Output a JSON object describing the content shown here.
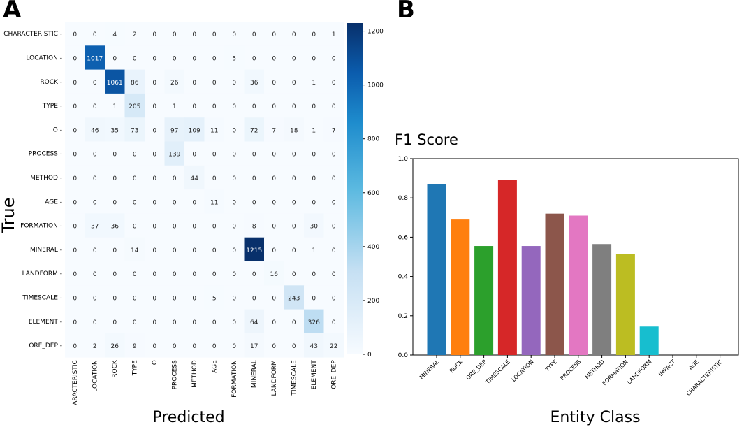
{
  "panel_a_label": "A",
  "panel_b_label": "B",
  "chart_data": [
    {
      "type": "heatmap",
      "title": "",
      "xlabel": "Predicted",
      "ylabel": "True",
      "row_labels": [
        "CHARACTERISTIC",
        "LOCATION",
        "ROCK",
        "TYPE",
        "O",
        "PROCESS",
        "METHOD",
        "AGE",
        "FORMATION",
        "MINERAL",
        "LANDFORM",
        "TIMESCALE",
        "ELEMENT",
        "ORE_DEP"
      ],
      "col_labels": [
        "CHARACTERISTIC",
        "LOCATION",
        "ROCK",
        "TYPE",
        "O",
        "PROCESS",
        "METHOD",
        "AGE",
        "FORMATION",
        "MINERAL",
        "LANDFORM",
        "TIMESCALE",
        "ELEMENT",
        "ORE_DEP"
      ],
      "col_labels_display": [
        "ARACTERISTIC",
        "LOCATION",
        "ROCK",
        "TYPE",
        "O",
        "PROCESS",
        "METHOD",
        "AGE",
        "FORMATION",
        "MINERAL",
        "LANDFORM",
        "TIMESCALE",
        "ELEMENT",
        "ORE_DEP"
      ],
      "row_labels_display": [
        "CHARACTERISTIC -",
        "LOCATION -",
        "ROCK -",
        "TYPE -",
        "O -",
        "PROCESS -",
        "METHOD -",
        "AGE -",
        "FORMATION -",
        "MINERAL -",
        "LANDFORM -",
        "TIMESCALE -",
        "ELEMENT -",
        "ORE_DEP -"
      ],
      "matrix": [
        [
          0,
          0,
          4,
          2,
          0,
          0,
          0,
          0,
          0,
          0,
          0,
          0,
          0,
          1
        ],
        [
          0,
          1017,
          0,
          0,
          0,
          0,
          0,
          0,
          5,
          0,
          0,
          0,
          0,
          0
        ],
        [
          0,
          0,
          1061,
          86,
          0,
          26,
          0,
          0,
          0,
          36,
          0,
          0,
          1,
          0
        ],
        [
          0,
          0,
          1,
          205,
          0,
          1,
          0,
          0,
          0,
          0,
          0,
          0,
          0,
          0
        ],
        [
          0,
          46,
          35,
          73,
          0,
          97,
          109,
          11,
          0,
          72,
          7,
          18,
          1,
          7
        ],
        [
          0,
          0,
          0,
          0,
          0,
          139,
          0,
          0,
          0,
          0,
          0,
          0,
          0,
          0
        ],
        [
          0,
          0,
          0,
          0,
          0,
          0,
          44,
          0,
          0,
          0,
          0,
          0,
          0,
          0
        ],
        [
          0,
          0,
          0,
          0,
          0,
          0,
          0,
          11,
          0,
          0,
          0,
          0,
          0,
          0
        ],
        [
          0,
          37,
          36,
          0,
          0,
          0,
          0,
          0,
          0,
          8,
          0,
          0,
          30,
          0
        ],
        [
          0,
          0,
          0,
          14,
          0,
          0,
          0,
          0,
          0,
          1215,
          0,
          0,
          1,
          0
        ],
        [
          0,
          0,
          0,
          0,
          0,
          0,
          0,
          0,
          0,
          0,
          16,
          0,
          0,
          0
        ],
        [
          0,
          0,
          0,
          0,
          0,
          0,
          0,
          5,
          0,
          0,
          0,
          243,
          0,
          0
        ],
        [
          0,
          0,
          0,
          0,
          0,
          0,
          0,
          0,
          0,
          64,
          0,
          0,
          326,
          0
        ],
        [
          0,
          2,
          26,
          9,
          0,
          0,
          0,
          0,
          0,
          17,
          0,
          0,
          43,
          22
        ]
      ],
      "colorbar": {
        "min": 0,
        "max": 1215,
        "ticks": [
          0,
          200,
          400,
          600,
          800,
          1000,
          1200
        ]
      }
    },
    {
      "type": "bar",
      "title": "F1 Score",
      "xlabel": "Entity Class",
      "ylabel": "",
      "ylim": [
        0,
        1.0
      ],
      "yticks": [
        "0.0",
        "0.2",
        "0.4",
        "0.6",
        "0.8",
        "1.0"
      ],
      "categories": [
        "MINERAL",
        "ROCK",
        "ORE_DEP",
        "TIMESCALE",
        "LOCATION",
        "TYPE",
        "PROCESS",
        "METHOD",
        "FORMATION",
        "LANDFORM",
        "IMPACT",
        "AGE",
        "CHARACTERISTIC"
      ],
      "values": [
        0.87,
        0.69,
        0.555,
        0.89,
        0.555,
        0.72,
        0.71,
        0.565,
        0.515,
        0.145,
        0,
        0,
        0
      ],
      "colors": [
        "#1f77b4",
        "#ff7f0e",
        "#2ca02c",
        "#d62728",
        "#9467bd",
        "#8c564b",
        "#e377c2",
        "#7f7f7f",
        "#bcbd22",
        "#17becf",
        "#1f77b4",
        "#ff7f0e",
        "#2ca02c"
      ]
    }
  ]
}
